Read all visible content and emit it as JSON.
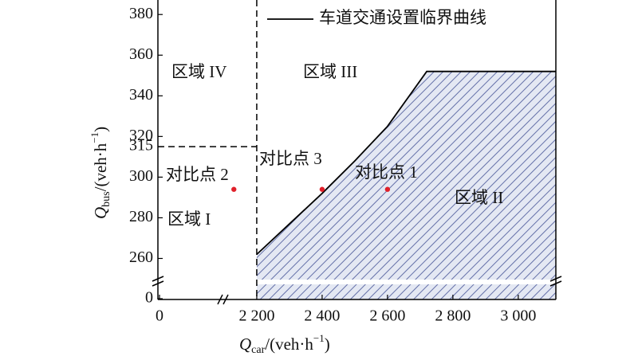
{
  "chart_data": {
    "type": "line",
    "xlabel": [
      "Q",
      "car",
      "/(veh·h",
      "−1",
      ")"
    ],
    "ylabel": [
      "Q",
      "bus",
      "/(veh·h",
      "−1",
      ")"
    ],
    "xlim": [
      0,
      3115
    ],
    "xbreak": [
      200,
      2105
    ],
    "ylim": [
      0,
      384
    ],
    "ybreak": [
      5,
      250
    ],
    "xticks": [
      0,
      {
        "value": 2200,
        "label": "2 200"
      },
      {
        "value": 2400,
        "label": "2 400"
      },
      {
        "value": 2600,
        "label": "2 600"
      },
      {
        "value": 2800,
        "label": "2 800"
      },
      {
        "value": 3000,
        "label": "3 000"
      }
    ],
    "yticks": [
      0,
      260,
      280,
      300,
      315,
      320,
      340,
      360,
      380
    ],
    "series": [
      {
        "name": "车道交通设置临界曲线",
        "color": "#000000",
        "x": [
          2200,
          2300,
          2400,
          2500,
          2600,
          2720,
          3115
        ],
        "values": [
          262,
          277,
          292,
          308,
          325,
          352,
          352
        ]
      }
    ],
    "points": {
      "color": "#e0202a",
      "x": [
        2600,
        2130,
        2400
      ],
      "values": [
        294,
        294,
        294
      ],
      "labels": [
        "对比点 1",
        "对比点 2",
        "对比点 3"
      ]
    },
    "dashed_x": 2200,
    "dashed_y": 315,
    "regions": [
      "区域 I",
      "区域 II",
      "区域 III",
      "区域 IV"
    ]
  }
}
